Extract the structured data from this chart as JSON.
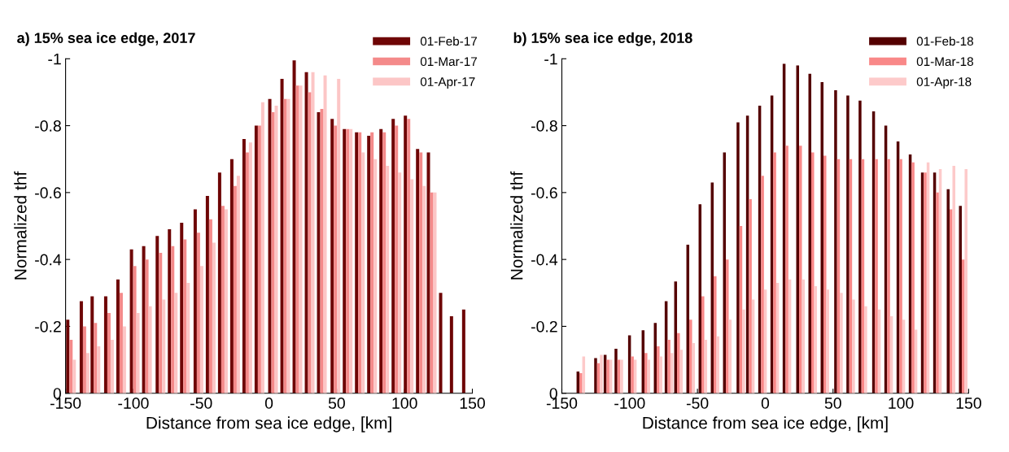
{
  "chart_data": [
    {
      "type": "bar",
      "title": "a) 15% sea ice edge, 2017",
      "xlabel": "Distance from sea ice edge, [km]",
      "ylabel": "Normalized thf",
      "x": [
        -146,
        -136,
        -128,
        -118,
        -109,
        -99,
        -90,
        -80,
        -71,
        -62,
        -52,
        -43,
        -34,
        -25,
        -16,
        -7,
        3,
        12,
        21,
        30,
        39,
        49,
        58,
        67,
        76,
        85,
        94,
        103,
        112,
        120,
        129,
        137,
        146
      ],
      "series": [
        {
          "name": "01-Feb-17",
          "color": "#6e0505",
          "values": [
            -0.22,
            -0.275,
            -0.29,
            -0.29,
            -0.34,
            -0.43,
            -0.44,
            -0.47,
            -0.49,
            -0.51,
            -0.55,
            -0.59,
            -0.66,
            -0.7,
            -0.76,
            -0.8,
            -0.88,
            -0.94,
            -0.995,
            -0.96,
            -0.84,
            -0.82,
            -0.79,
            -0.78,
            -0.77,
            -0.79,
            -0.82,
            -0.83,
            -0.73,
            -0.72,
            -0.3,
            -0.23,
            -0.25
          ]
        },
        {
          "name": "01-Mar-17",
          "color": "#f48a8a",
          "values": [
            -0.16,
            -0.2,
            -0.21,
            -0.24,
            -0.3,
            -0.38,
            -0.4,
            -0.42,
            -0.44,
            -0.46,
            -0.48,
            -0.52,
            -0.56,
            -0.62,
            -0.72,
            -0.8,
            -0.84,
            -0.88,
            -0.92,
            -0.9,
            -0.85,
            -0.8,
            -0.79,
            -0.78,
            -0.78,
            -0.78,
            -0.8,
            -0.82,
            -0.72,
            -0.6,
            null,
            null,
            null
          ]
        },
        {
          "name": "01-Apr-17",
          "color": "#fcc6c6",
          "values": [
            -0.1,
            -0.12,
            -0.14,
            -0.16,
            -0.2,
            -0.24,
            -0.26,
            -0.28,
            -0.3,
            -0.33,
            -0.38,
            -0.45,
            -0.55,
            -0.65,
            -0.75,
            -0.87,
            -0.86,
            -0.88,
            -0.92,
            -0.96,
            -0.95,
            -0.94,
            -0.79,
            -0.72,
            -0.7,
            -0.68,
            -0.66,
            -0.64,
            -0.62,
            -0.6,
            null,
            null,
            null
          ]
        }
      ],
      "xlim": [
        -150,
        150
      ],
      "xticks": [
        -150,
        -100,
        -50,
        0,
        50,
        100,
        150
      ],
      "ylim": [
        0,
        -1
      ],
      "yticks": [
        -1,
        -0.8,
        -0.6,
        -0.4,
        -0.2,
        0
      ],
      "legend": "top right"
    },
    {
      "type": "bar",
      "title": "b) 15% sea ice edge, 2018",
      "xlabel": "Distance from sea ice edge, [km]",
      "ylabel": "Normalized thf",
      "x": [
        -136,
        -123,
        -116,
        -108,
        -98,
        -88,
        -79,
        -71,
        -64,
        -55,
        -46,
        -37,
        -28,
        -18,
        -11,
        -2,
        7,
        16,
        26,
        35,
        44,
        54,
        63,
        72,
        82,
        91,
        100,
        109,
        118,
        127,
        137,
        146
      ],
      "series": [
        {
          "name": "01-Feb-18",
          "color": "#540000",
          "values": [
            -0.065,
            -0.105,
            -0.115,
            -0.133,
            -0.173,
            -0.188,
            -0.21,
            -0.275,
            -0.334,
            -0.444,
            -0.565,
            -0.63,
            -0.72,
            -0.81,
            -0.83,
            -0.86,
            -0.89,
            -0.985,
            -0.98,
            -0.955,
            -0.93,
            -0.906,
            -0.89,
            -0.875,
            -0.843,
            -0.8,
            -0.753,
            -0.714,
            -0.66,
            -0.66,
            -0.61,
            -0.56
          ]
        },
        {
          "name": "01-Mar-18",
          "color": "#f98888",
          "values": [
            -0.06,
            -0.09,
            -0.1,
            -0.1,
            -0.11,
            -0.12,
            -0.14,
            -0.16,
            -0.18,
            -0.22,
            -0.29,
            -0.35,
            -0.4,
            -0.5,
            -0.58,
            -0.65,
            -0.72,
            -0.74,
            -0.74,
            -0.72,
            -0.71,
            -0.7,
            -0.7,
            -0.7,
            -0.7,
            -0.7,
            -0.7,
            -0.69,
            -0.66,
            -0.6,
            -0.55,
            -0.4
          ]
        },
        {
          "name": "01-Apr-18",
          "color": "#fdcaca",
          "values": [
            -0.11,
            -0.115,
            -0.1,
            -0.1,
            -0.1,
            -0.1,
            -0.11,
            -0.12,
            -0.13,
            -0.15,
            -0.16,
            -0.17,
            -0.22,
            -0.25,
            -0.28,
            -0.31,
            -0.33,
            -0.34,
            -0.34,
            -0.32,
            -0.31,
            -0.3,
            -0.28,
            -0.26,
            -0.25,
            -0.23,
            -0.22,
            -0.19,
            -0.69,
            -0.67,
            -0.68,
            -0.67
          ]
        }
      ],
      "xlim": [
        -150,
        150
      ],
      "xticks": [
        -150,
        -100,
        -50,
        0,
        50,
        100,
        150
      ],
      "ylim": [
        0,
        -1
      ],
      "yticks": [
        -1,
        -0.8,
        -0.6,
        -0.4,
        -0.2,
        0
      ],
      "legend": "top right"
    }
  ]
}
